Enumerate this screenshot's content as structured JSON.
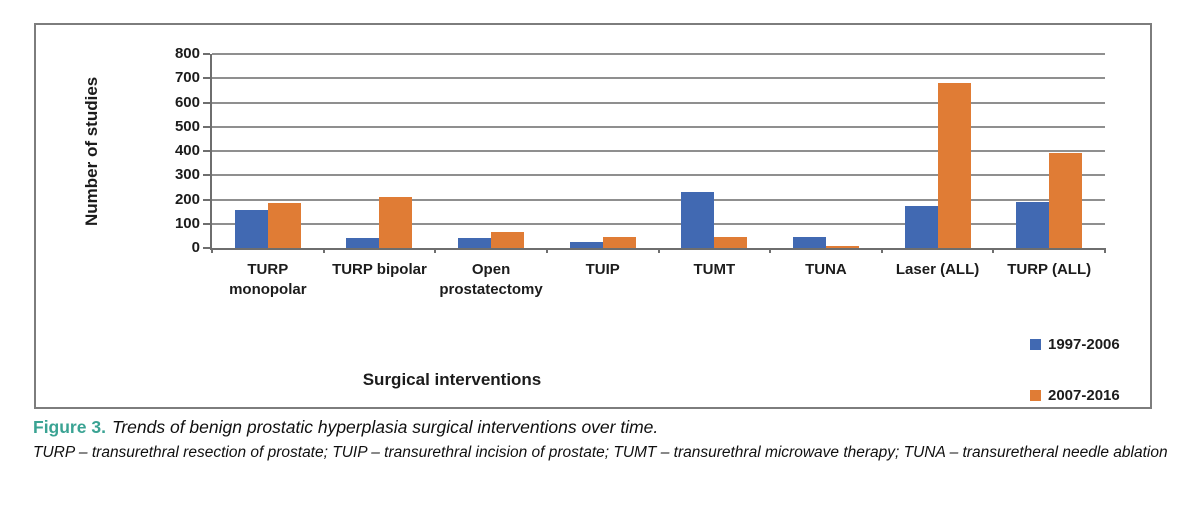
{
  "caption": {
    "label": "Figure 3.",
    "title": "Trends of benign prostatic hyperplasia surgical interventions over time.",
    "note": "TURP – transurethral resection of prostate; TUIP – transurethral incision of prostate; TUMT – transurethral microwave therapy; TUNA – transuretheral needle ablation"
  },
  "colors": {
    "caption_label": "#3aa393",
    "series_blue": "#4169b2",
    "series_orange": "#e07c35",
    "gridline": "#8f8f8f",
    "axis": "#6e6e6e",
    "panel_border": "#7d7d7d"
  },
  "chart_data": {
    "type": "bar",
    "title": "",
    "xlabel": "Surgical interventions",
    "ylabel": "Number of studies",
    "ylim": [
      0,
      800
    ],
    "ytick_step": 100,
    "grid": true,
    "legend_position": "bottom-right",
    "categories": [
      "TURP monopolar",
      "TURP bipolar",
      "Open prostatectomy",
      "TUIP",
      "TUMT",
      "TUNA",
      "Laser (ALL)",
      "TURP (ALL)"
    ],
    "series": [
      {
        "name": "1997-2006",
        "color": "#4169b2",
        "values": [
          155,
          40,
          40,
          25,
          230,
          45,
          175,
          190
        ]
      },
      {
        "name": "2007-2016",
        "color": "#e07c35",
        "values": [
          185,
          210,
          65,
          45,
          45,
          10,
          680,
          390
        ]
      }
    ]
  }
}
